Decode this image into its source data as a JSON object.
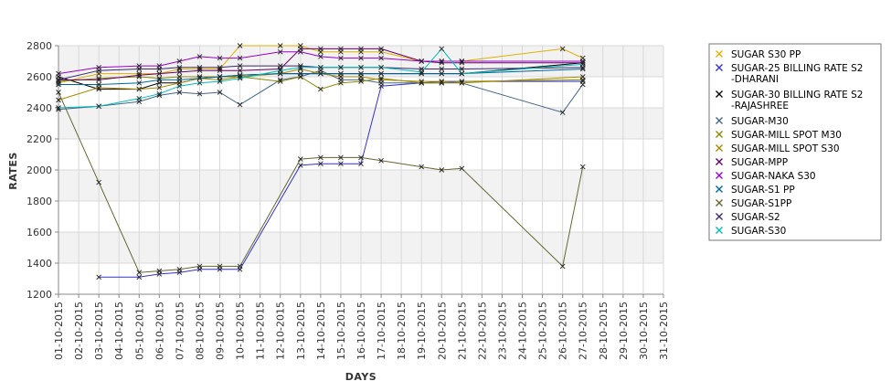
{
  "chart_data": {
    "type": "line",
    "title": "",
    "xlabel": "DAYS",
    "ylabel": "RATES",
    "ylim": [
      1200,
      2800
    ],
    "yticks": [
      1200,
      1400,
      1600,
      1800,
      2000,
      2200,
      2400,
      2600,
      2800
    ],
    "grid": true,
    "legend_position": "right",
    "x": [
      "01-10-2015",
      "02-10-2015",
      "03-10-2015",
      "04-10-2015",
      "05-10-2015",
      "06-10-2015",
      "07-10-2015",
      "08-10-2015",
      "09-10-2015",
      "10-10-2015",
      "11-10-2015",
      "12-10-2015",
      "13-10-2015",
      "14-10-2015",
      "15-10-2015",
      "16-10-2015",
      "17-10-2015",
      "18-10-2015",
      "19-10-2015",
      "20-10-2015",
      "21-10-2015",
      "22-10-2015",
      "23-10-2015",
      "24-10-2015",
      "25-10-2015",
      "26-10-2015",
      "27-10-2015",
      "28-10-2015",
      "29-10-2015",
      "30-10-2015",
      "31-10-2015"
    ],
    "series": [
      {
        "name": "SUGAR S30 PP",
        "color": "#e0b000",
        "values": [
          2560,
          null,
          2620,
          null,
          2620,
          2620,
          2650,
          2650,
          2650,
          2800,
          null,
          2800,
          2800,
          2760,
          2760,
          2760,
          2760,
          null,
          2700,
          2700,
          2700,
          null,
          null,
          null,
          null,
          2780,
          2720,
          null,
          null,
          null,
          null
        ]
      },
      {
        "name": "SUGAR-25 BILLING RATE S2 -DHARANI",
        "color": "#3333cc",
        "values": [
          null,
          null,
          1310,
          null,
          1310,
          1330,
          1340,
          1360,
          1360,
          1360,
          null,
          null,
          2030,
          2040,
          2040,
          2040,
          2540,
          null,
          2560,
          2570,
          2570,
          null,
          null,
          null,
          null,
          null,
          2570,
          null,
          null,
          null,
          null
        ]
      },
      {
        "name": "SUGAR-30 BILLING RATE S2 -RAJASHREE",
        "color": "#000000",
        "values": [
          2600,
          null,
          2520,
          null,
          2520,
          2560,
          2560,
          2590,
          2600,
          2610,
          null,
          2620,
          2620,
          2620,
          2620,
          2620,
          2620,
          null,
          2620,
          2620,
          2620,
          null,
          null,
          null,
          null,
          null,
          2690,
          null,
          null,
          null,
          null
        ]
      },
      {
        "name": "SUGAR-M30",
        "color": "#446688",
        "values": [
          2390,
          null,
          2410,
          null,
          2440,
          2480,
          2500,
          2490,
          2500,
          2420,
          null,
          2580,
          2600,
          2640,
          2580,
          2580,
          2560,
          null,
          2560,
          2560,
          2560,
          null,
          null,
          null,
          null,
          2370,
          2550,
          null,
          null,
          null,
          null
        ]
      },
      {
        "name": "SUGAR-MILL SPOT M30",
        "color": "#888800",
        "values": [
          2570,
          null,
          2590,
          null,
          2600,
          2590,
          2600,
          2600,
          2600,
          2600,
          null,
          2570,
          2600,
          2520,
          2560,
          2570,
          2590,
          null,
          2560,
          2560,
          2570,
          null,
          null,
          null,
          null,
          null,
          2580,
          null,
          null,
          null,
          null
        ]
      },
      {
        "name": "SUGAR-MILL SPOT S30",
        "color": "#aa8800",
        "values": [
          2450,
          null,
          2530,
          null,
          2520,
          2530,
          2560,
          2590,
          2580,
          2600,
          null,
          2620,
          2650,
          2620,
          2600,
          2600,
          2580,
          null,
          2570,
          2570,
          2560,
          null,
          null,
          null,
          null,
          null,
          2600,
          null,
          null,
          null,
          null
        ]
      },
      {
        "name": "SUGAR-MPP",
        "color": "#660066",
        "values": [
          2580,
          null,
          2580,
          null,
          2610,
          2620,
          2630,
          2640,
          2640,
          2640,
          null,
          2650,
          2780,
          2780,
          2780,
          2780,
          2780,
          null,
          2700,
          2690,
          2690,
          null,
          null,
          null,
          null,
          null,
          2690,
          null,
          null,
          null,
          null
        ]
      },
      {
        "name": "SUGAR-NAKA S30",
        "color": "#9900cc",
        "values": [
          2620,
          null,
          2660,
          null,
          2670,
          2670,
          2700,
          2730,
          2720,
          2720,
          null,
          2760,
          2760,
          2730,
          2720,
          2720,
          2720,
          null,
          2700,
          2700,
          2700,
          null,
          null,
          null,
          null,
          null,
          2700,
          null,
          null,
          null,
          null
        ]
      },
      {
        "name": "SUGAR-S1 PP",
        "color": "#006699",
        "values": [
          2550,
          null,
          2550,
          null,
          2560,
          2580,
          2580,
          2590,
          2600,
          2610,
          null,
          2620,
          2620,
          2620,
          2620,
          2620,
          2620,
          null,
          2620,
          2620,
          2620,
          null,
          null,
          null,
          null,
          null,
          2650,
          null,
          null,
          null,
          null
        ]
      },
      {
        "name": "SUGAR-S1PP",
        "color": "#666633",
        "values": [
          2500,
          null,
          1920,
          null,
          1340,
          1350,
          1360,
          1380,
          1380,
          1380,
          null,
          null,
          2070,
          2080,
          2080,
          2080,
          2060,
          null,
          2020,
          2000,
          2010,
          null,
          null,
          null,
          null,
          1380,
          2020,
          null,
          null,
          null,
          null
        ]
      },
      {
        "name": "SUGAR-S2",
        "color": "#3b2a6a",
        "values": [
          2580,
          null,
          2640,
          null,
          2650,
          2650,
          2660,
          2660,
          2660,
          2670,
          null,
          2670,
          2670,
          2660,
          2660,
          2660,
          2660,
          null,
          2650,
          2650,
          2650,
          null,
          null,
          null,
          null,
          null,
          2660,
          null,
          null,
          null,
          null
        ]
      },
      {
        "name": "SUGAR-S30",
        "color": "#00bbbb",
        "values": [
          2400,
          null,
          2410,
          null,
          2460,
          2490,
          2540,
          2560,
          2570,
          2590,
          null,
          2640,
          2660,
          2660,
          2660,
          2660,
          2660,
          null,
          2630,
          2780,
          2620,
          null,
          null,
          null,
          null,
          null,
          2680,
          null,
          null,
          null,
          null
        ]
      }
    ]
  }
}
